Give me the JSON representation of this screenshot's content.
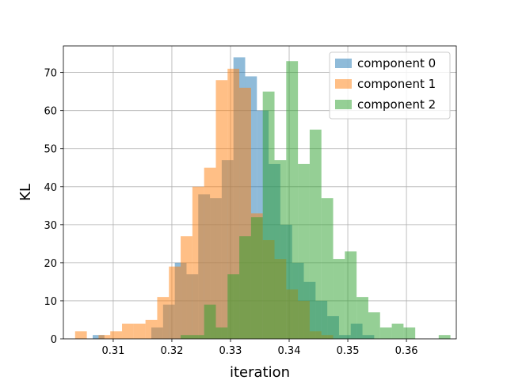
{
  "chart_data": {
    "type": "bar",
    "title": "",
    "xlabel": "iteration",
    "ylabel": "KL",
    "xlim": [
      0.3015,
      0.3685
    ],
    "ylim": [
      0,
      77
    ],
    "grid": true,
    "legend_position": "top-right",
    "xticks": [
      "0.31",
      "0.32",
      "0.33",
      "0.34",
      "0.35",
      "0.36"
    ],
    "xtick_values": [
      0.31,
      0.32,
      0.33,
      0.34,
      0.35,
      0.36
    ],
    "yticks": [
      "0",
      "10",
      "20",
      "30",
      "40",
      "50",
      "60",
      "70"
    ],
    "ytick_values": [
      0,
      10,
      20,
      30,
      40,
      50,
      60,
      70
    ],
    "series": [
      {
        "name": "component 0",
        "color": "#1f77b4",
        "bins": [
          {
            "x0": 0.3065,
            "x1": 0.3075,
            "count": 1
          },
          {
            "x0": 0.3075,
            "x1": 0.3085,
            "count": 1
          },
          {
            "x0": 0.3165,
            "x1": 0.3185,
            "count": 3
          },
          {
            "x0": 0.3185,
            "x1": 0.3205,
            "count": 9
          },
          {
            "x0": 0.3205,
            "x1": 0.3225,
            "count": 20
          },
          {
            "x0": 0.3225,
            "x1": 0.3245,
            "count": 17
          },
          {
            "x0": 0.3245,
            "x1": 0.3265,
            "count": 38
          },
          {
            "x0": 0.3265,
            "x1": 0.3285,
            "count": 37
          },
          {
            "x0": 0.3285,
            "x1": 0.3305,
            "count": 47
          },
          {
            "x0": 0.3305,
            "x1": 0.3325,
            "count": 74
          },
          {
            "x0": 0.3325,
            "x1": 0.3345,
            "count": 69
          },
          {
            "x0": 0.3345,
            "x1": 0.3365,
            "count": 60
          },
          {
            "x0": 0.3365,
            "x1": 0.3385,
            "count": 46
          },
          {
            "x0": 0.3385,
            "x1": 0.3405,
            "count": 30
          },
          {
            "x0": 0.3405,
            "x1": 0.3425,
            "count": 20
          },
          {
            "x0": 0.3425,
            "x1": 0.3445,
            "count": 15
          },
          {
            "x0": 0.3445,
            "x1": 0.3465,
            "count": 10
          },
          {
            "x0": 0.3465,
            "x1": 0.3485,
            "count": 6
          },
          {
            "x0": 0.3485,
            "x1": 0.3505,
            "count": 1
          },
          {
            "x0": 0.3505,
            "x1": 0.3525,
            "count": 4
          },
          {
            "x0": 0.3525,
            "x1": 0.3545,
            "count": 1
          }
        ]
      },
      {
        "name": "component 1",
        "color": "#ff7f0e",
        "bins": [
          {
            "x0": 0.3035,
            "x1": 0.3055,
            "count": 2
          },
          {
            "x0": 0.3055,
            "x1": 0.3075,
            "count": 0
          },
          {
            "x0": 0.3075,
            "x1": 0.3095,
            "count": 1
          },
          {
            "x0": 0.3095,
            "x1": 0.3115,
            "count": 2
          },
          {
            "x0": 0.3115,
            "x1": 0.3135,
            "count": 4
          },
          {
            "x0": 0.3135,
            "x1": 0.3155,
            "count": 4
          },
          {
            "x0": 0.3155,
            "x1": 0.3175,
            "count": 5
          },
          {
            "x0": 0.3175,
            "x1": 0.3195,
            "count": 11
          },
          {
            "x0": 0.3195,
            "x1": 0.3215,
            "count": 19
          },
          {
            "x0": 0.3215,
            "x1": 0.3235,
            "count": 27
          },
          {
            "x0": 0.3235,
            "x1": 0.3255,
            "count": 40
          },
          {
            "x0": 0.3255,
            "x1": 0.3275,
            "count": 45
          },
          {
            "x0": 0.3275,
            "x1": 0.3295,
            "count": 68
          },
          {
            "x0": 0.3295,
            "x1": 0.3315,
            "count": 71
          },
          {
            "x0": 0.3315,
            "x1": 0.3335,
            "count": 66
          },
          {
            "x0": 0.3335,
            "x1": 0.3355,
            "count": 33
          },
          {
            "x0": 0.3355,
            "x1": 0.3375,
            "count": 26
          },
          {
            "x0": 0.3375,
            "x1": 0.3395,
            "count": 21
          },
          {
            "x0": 0.3395,
            "x1": 0.3415,
            "count": 13
          },
          {
            "x0": 0.3415,
            "x1": 0.3435,
            "count": 10
          },
          {
            "x0": 0.3435,
            "x1": 0.3455,
            "count": 2
          },
          {
            "x0": 0.3455,
            "x1": 0.3475,
            "count": 1
          }
        ]
      },
      {
        "name": "component 2",
        "color": "#2ca02c",
        "bins": [
          {
            "x0": 0.3215,
            "x1": 0.3255,
            "count": 1
          },
          {
            "x0": 0.3255,
            "x1": 0.3275,
            "count": 9
          },
          {
            "x0": 0.3275,
            "x1": 0.3295,
            "count": 3
          },
          {
            "x0": 0.3295,
            "x1": 0.3315,
            "count": 17
          },
          {
            "x0": 0.3315,
            "x1": 0.3335,
            "count": 27
          },
          {
            "x0": 0.3335,
            "x1": 0.3355,
            "count": 32
          },
          {
            "x0": 0.3355,
            "x1": 0.3375,
            "count": 65
          },
          {
            "x0": 0.3375,
            "x1": 0.3395,
            "count": 47
          },
          {
            "x0": 0.3395,
            "x1": 0.3415,
            "count": 73
          },
          {
            "x0": 0.3415,
            "x1": 0.3435,
            "count": 46
          },
          {
            "x0": 0.3435,
            "x1": 0.3455,
            "count": 55
          },
          {
            "x0": 0.3455,
            "x1": 0.3475,
            "count": 37
          },
          {
            "x0": 0.3475,
            "x1": 0.3495,
            "count": 21
          },
          {
            "x0": 0.3495,
            "x1": 0.3515,
            "count": 23
          },
          {
            "x0": 0.3515,
            "x1": 0.3535,
            "count": 11
          },
          {
            "x0": 0.3535,
            "x1": 0.3555,
            "count": 7
          },
          {
            "x0": 0.3555,
            "x1": 0.3575,
            "count": 3
          },
          {
            "x0": 0.3575,
            "x1": 0.3595,
            "count": 4
          },
          {
            "x0": 0.3595,
            "x1": 0.3615,
            "count": 3
          },
          {
            "x0": 0.3615,
            "x1": 0.3655,
            "count": 0
          },
          {
            "x0": 0.3655,
            "x1": 0.3675,
            "count": 1
          }
        ]
      }
    ]
  }
}
